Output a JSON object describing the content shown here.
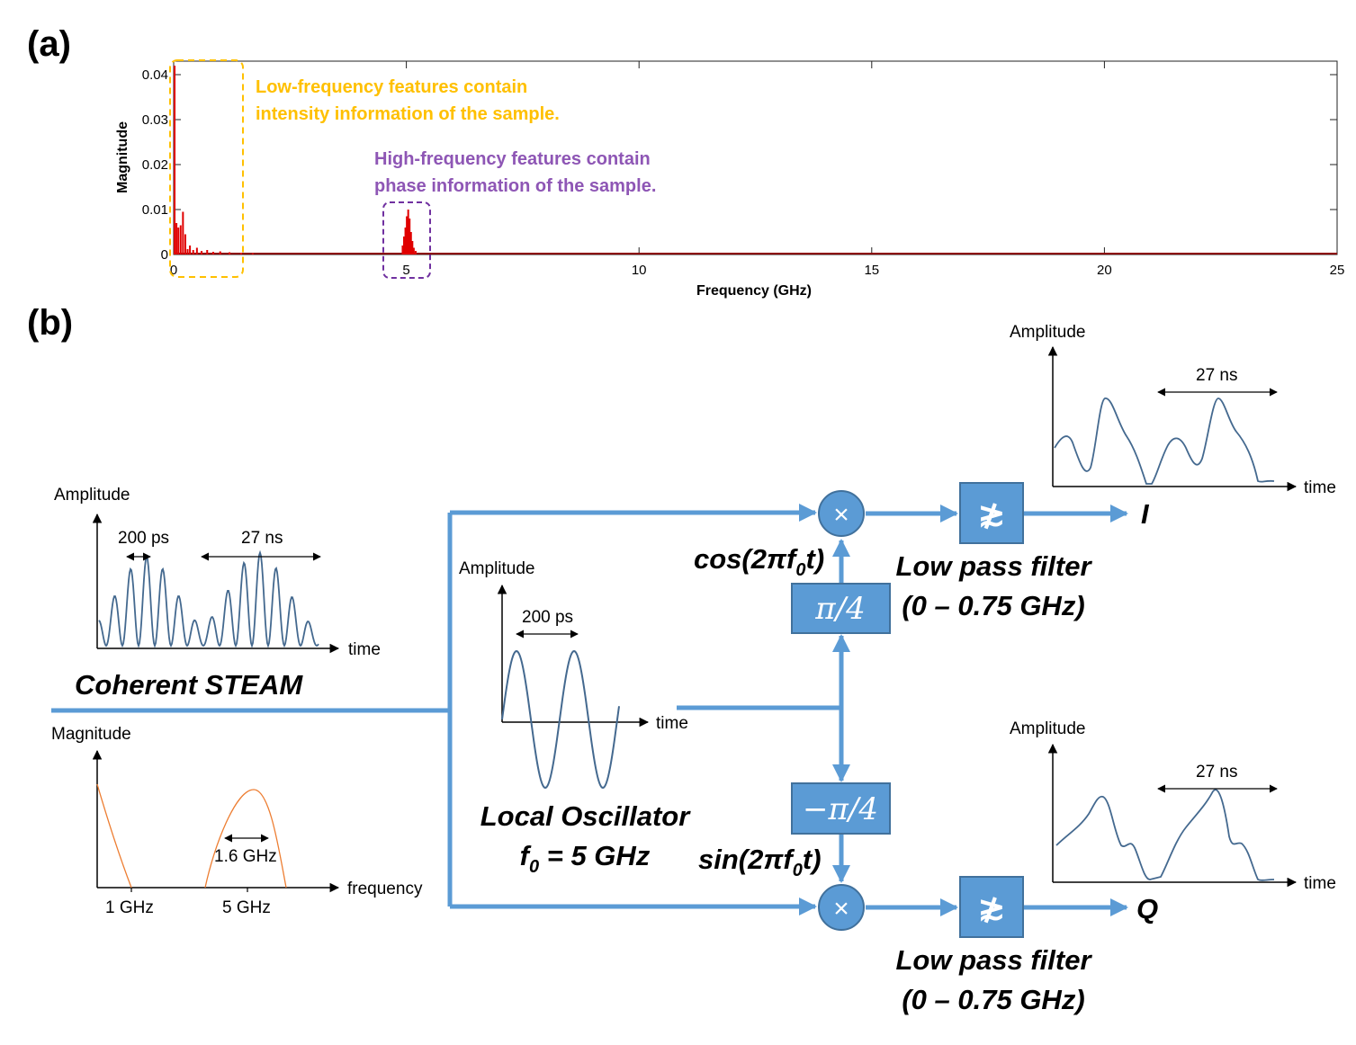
{
  "panel_a": {
    "label": "(a)",
    "chart_data": {
      "type": "bar",
      "title": "",
      "xlabel": "Frequency (GHz)",
      "ylabel": "Magnitude",
      "xlim": [
        0,
        25
      ],
      "ylim": [
        0,
        0.04
      ],
      "xticks": [
        "0",
        "5",
        "10",
        "15",
        "20",
        "25"
      ],
      "yticks": [
        "0",
        "0.01",
        "0.02",
        "0.03",
        "0.04"
      ],
      "series": [
        {
          "color": "#e00000",
          "x": [
            0.02,
            0.06,
            0.1,
            0.15,
            0.2,
            0.25,
            0.3,
            0.35,
            0.42,
            0.5,
            0.6,
            0.72,
            0.85,
            1.0,
            1.2,
            1.45,
            1.7,
            4.92,
            4.95,
            4.98,
            5.01,
            5.04,
            5.07,
            5.1,
            5.13,
            5.16,
            5.2
          ],
          "y": [
            0.042,
            0.007,
            0.006,
            0.0065,
            0.0095,
            0.0045,
            0.0012,
            0.002,
            0.001,
            0.0015,
            0.0008,
            0.001,
            0.0006,
            0.0007,
            0.0005,
            0.0004,
            0.0003,
            0.002,
            0.004,
            0.006,
            0.0085,
            0.01,
            0.008,
            0.005,
            0.003,
            0.0015,
            0.0008
          ]
        }
      ]
    },
    "annotations": {
      "low_freq_line1": "Low-frequency features contain",
      "low_freq_line2": "intensity information of the sample.",
      "high_freq_line1": "High-frequency features contain",
      "high_freq_line2": "phase information of the sample.",
      "low_color": "#ffc000",
      "high_color": "#8e56b5"
    }
  },
  "panel_b": {
    "label": "(b)",
    "input": {
      "title": "Coherent STEAM",
      "time_plot": {
        "ylabel": "Amplitude",
        "xlabel": "time",
        "span1": "200 ps",
        "span2": "27 ns"
      },
      "freq_plot": {
        "ylabel": "Magnitude",
        "xlabel": "frequency",
        "tick1": "1 GHz",
        "tick2": "5 GHz",
        "width_label": "1.6 GHz"
      }
    },
    "local_oscillator": {
      "line1": "Local Oscillator",
      "freq_prefix": "f",
      "freq_sub": "0",
      "freq_value": " = 5 GHz",
      "plot": {
        "ylabel": "Amplitude",
        "xlabel": "time",
        "span": "200 ps"
      }
    },
    "phase_shift_top": "π/4",
    "phase_shift_bottom": "−π/4",
    "cos_label": {
      "pre": "cos(2πf",
      "sub": "0",
      "post": "t)"
    },
    "sin_label": {
      "pre": "sin(2πf",
      "sub": "0",
      "post": "t)"
    },
    "mixer_symbol": "×",
    "filter_symbol": "≵",
    "filter_top": {
      "line1": "Low pass filter",
      "line2": "(0 – 0.75 GHz)"
    },
    "filter_bottom": {
      "line1": "Low pass filter",
      "line2": "(0 – 0.75 GHz)"
    },
    "output_I": {
      "label": "I",
      "plot": {
        "ylabel": "Amplitude",
        "xlabel": "time",
        "span": "27 ns"
      }
    },
    "output_Q": {
      "label": "Q",
      "plot": {
        "ylabel": "Amplitude",
        "xlabel": "time",
        "span": "27 ns"
      }
    },
    "colors": {
      "signal": "#5b9bd5",
      "box": "#5b9bd5",
      "box_border": "#41719c",
      "wave": "#44698f",
      "spectrum": "#ed7d31"
    }
  }
}
